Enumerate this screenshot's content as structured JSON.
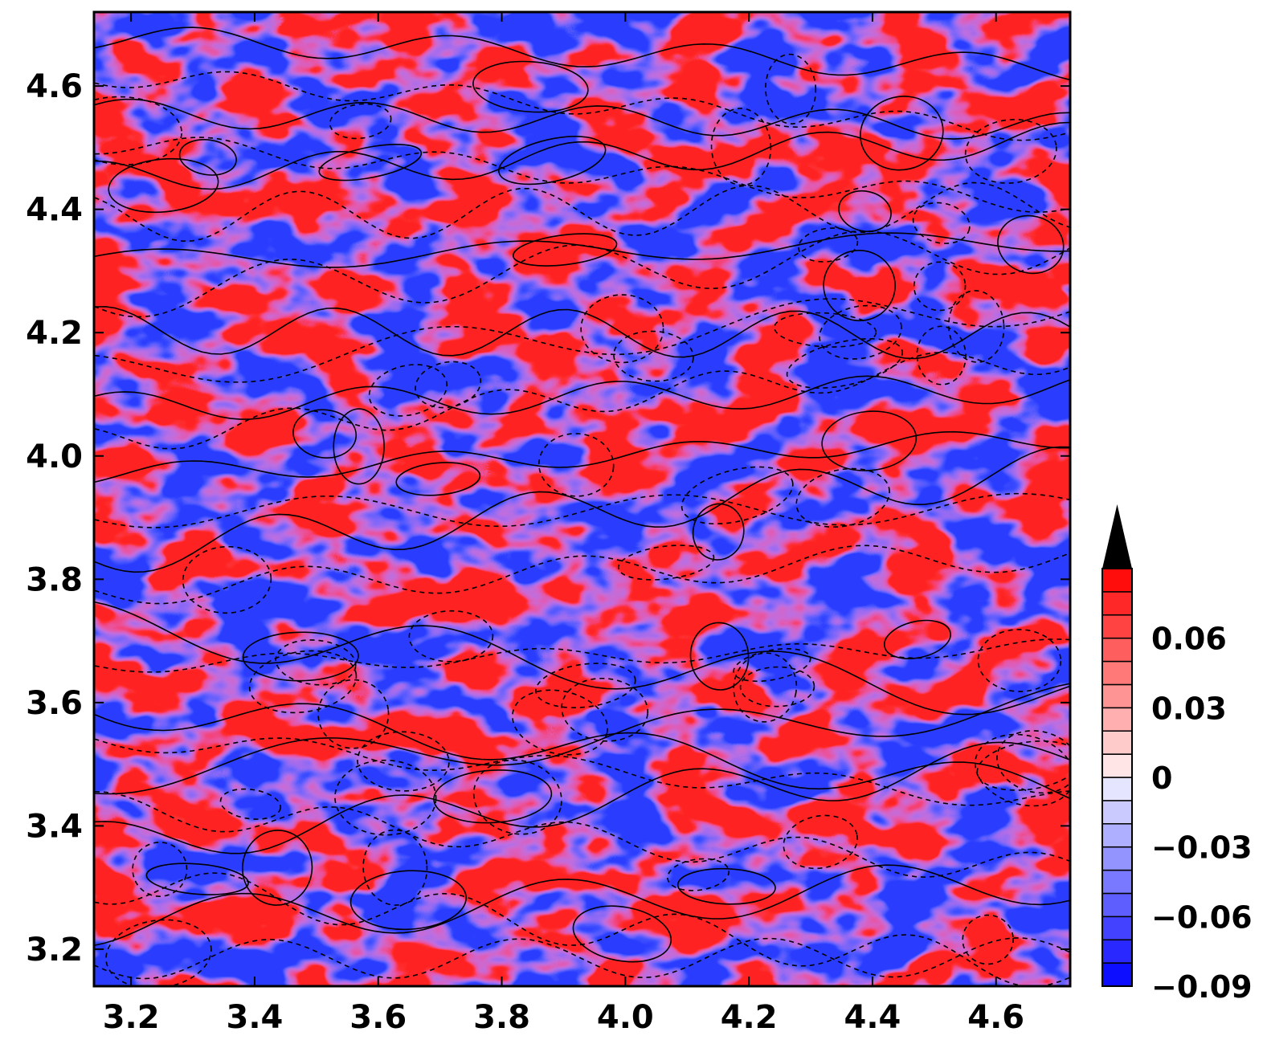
{
  "chart_data": {
    "type": "heatmap",
    "title": "",
    "xlabel": "",
    "ylabel": "",
    "xlim": [
      3.14,
      4.72
    ],
    "ylim": [
      3.14,
      4.72
    ],
    "x_ticks": [
      3.2,
      3.4,
      3.6,
      3.8,
      4.0,
      4.2,
      4.4,
      4.6
    ],
    "x_tick_labels": [
      "3.2",
      "3.4",
      "3.6",
      "3.8",
      "4.0",
      "4.2",
      "4.4",
      "4.6"
    ],
    "y_ticks": [
      3.2,
      3.4,
      3.6,
      3.8,
      4.0,
      4.2,
      4.4,
      4.6
    ],
    "y_tick_labels": [
      "3.2",
      "3.4",
      "3.6",
      "3.8",
      "4.0",
      "4.2",
      "4.4",
      "4.6"
    ],
    "field_description": "Filled field with overlaid solid and dashed black contour lines",
    "colorbar": {
      "min": -0.09,
      "max": 0.09,
      "levels": 18,
      "extend": "max",
      "tick_values": [
        0.06,
        0.03,
        0,
        -0.03,
        -0.06,
        -0.09
      ],
      "tick_labels": [
        "0.06",
        "0.03",
        "0",
        "−0.03",
        "−0.06",
        "−0.09"
      ],
      "colormap": {
        "negative": "#0000ff",
        "zero": "#ffffff",
        "positive": "#ff0000",
        "overflow": "#000000"
      }
    },
    "grid": false,
    "legend": "colorbar-right"
  }
}
